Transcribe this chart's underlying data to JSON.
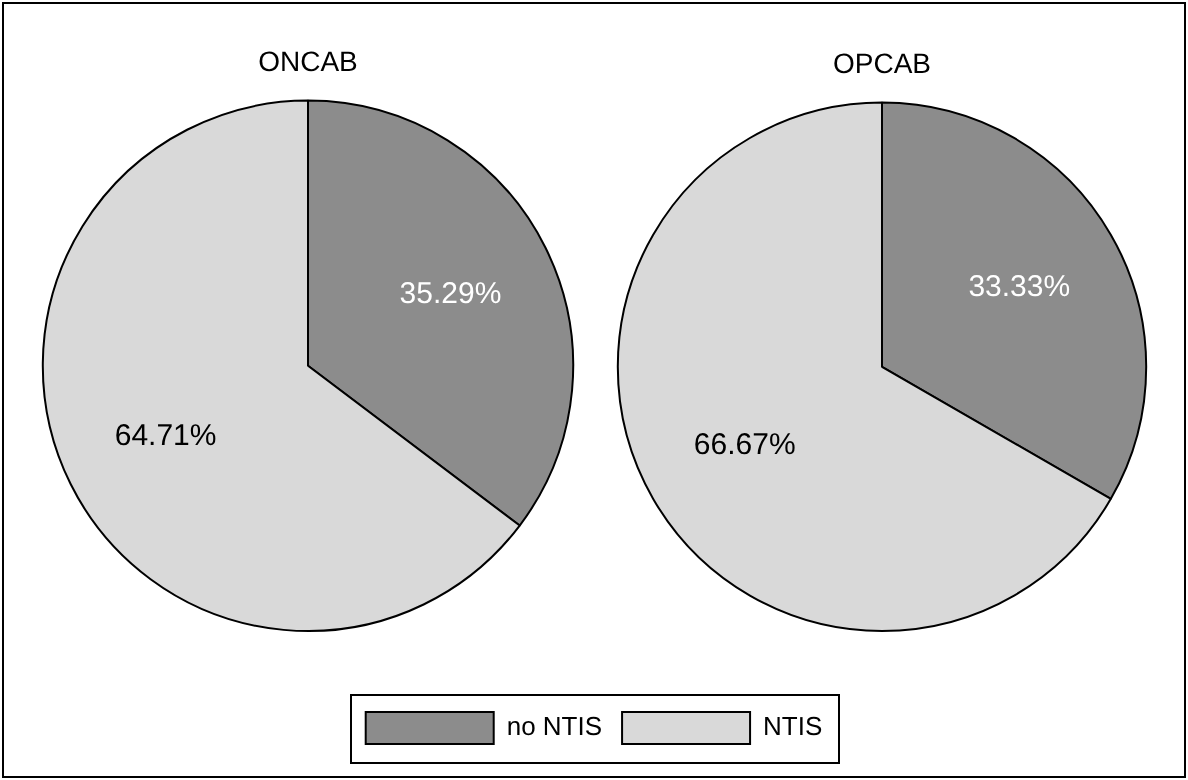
{
  "chart_data": [
    {
      "type": "pie",
      "title": "ONCAB",
      "categories": [
        "no NTIS",
        "NTIS"
      ],
      "values": [
        35.29,
        64.71
      ],
      "colors": [
        "#8c8c8c",
        "#d9d9d9"
      ],
      "value_labels": [
        "35.29%",
        "64.71%"
      ],
      "legend": "bottom"
    },
    {
      "type": "pie",
      "title": "OPCAB",
      "categories": [
        null,
        null
      ],
      "values": [
        33.33,
        66.67
      ],
      "colors": [
        "#8c8c8c",
        "#d9d9d9"
      ],
      "value_labels": [
        "33.33%",
        "66.67%"
      ]
    }
  ]
}
